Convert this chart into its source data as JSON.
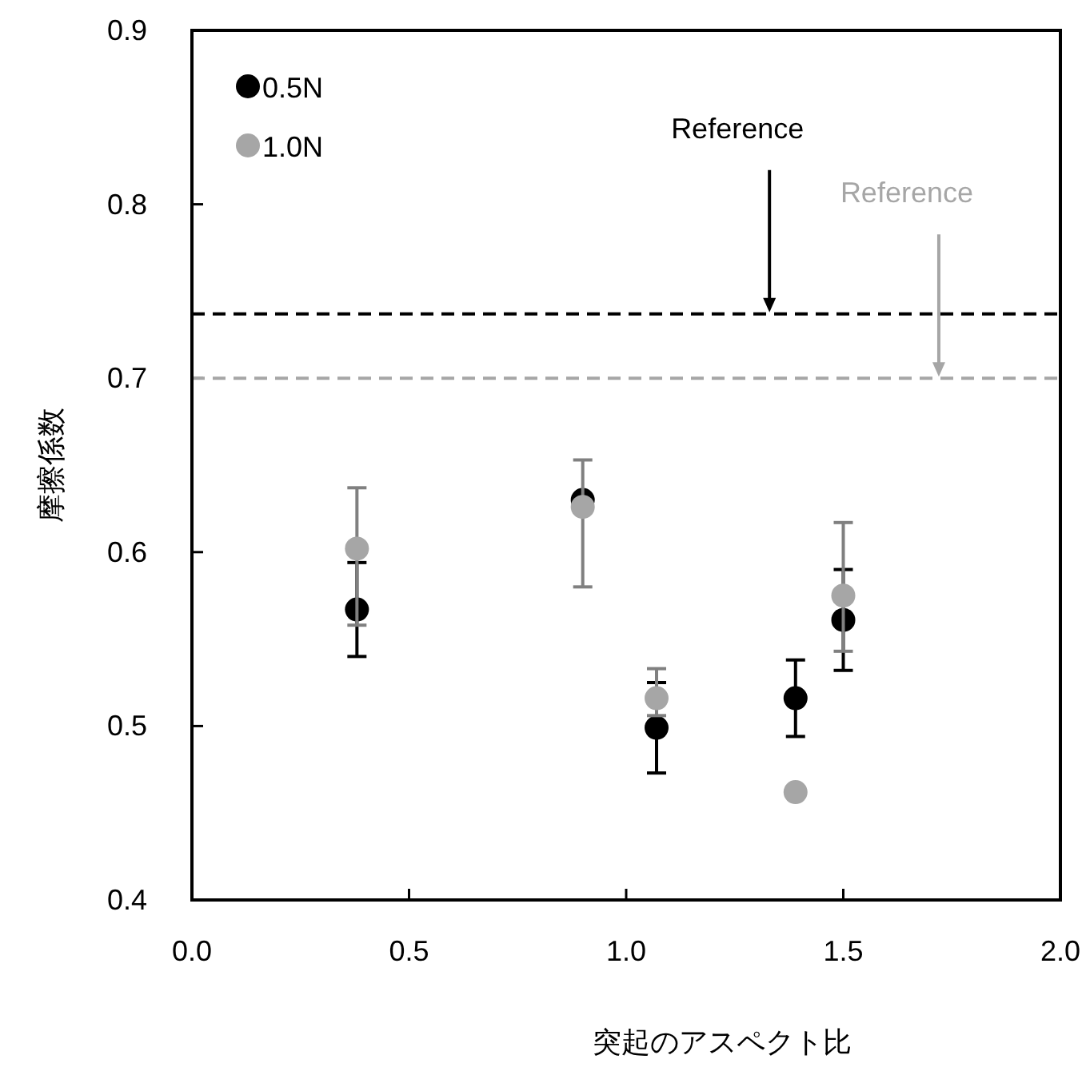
{
  "chart_data": {
    "type": "scatter",
    "xlabel": "突起のアスペクト比",
    "ylabel": "摩擦係数",
    "xlim": [
      0,
      2
    ],
    "xticks": [
      {
        "value": 0,
        "label": "0.0"
      },
      0.5,
      {
        "value": 1,
        "label": "1.0"
      },
      1.5,
      {
        "value": 2,
        "label": "2.0"
      }
    ],
    "ylim": [
      0.4,
      0.9
    ],
    "yticks": [
      0.4,
      0.5,
      0.6,
      0.7,
      0.8,
      0.9
    ],
    "grid": false,
    "legend": "top left",
    "marker": "circle",
    "series": [
      {
        "name": "0.5N",
        "color": "#000000",
        "x": [
          0.38,
          0.9,
          1.07,
          1.39,
          1.5
        ],
        "values": [
          0.567,
          0.63,
          0.499,
          0.516,
          0.561
        ],
        "errors": [
          0.027,
          null,
          0.026,
          0.022,
          0.029
        ]
      },
      {
        "name": "1.0N",
        "color": "#a6a6a6",
        "x": [
          0.38,
          0.9,
          1.07,
          1.39,
          1.5
        ],
        "values": [
          0.602,
          0.626,
          0.516,
          0.462,
          0.575
        ],
        "errors": [
          [
            0.558,
            0.637
          ],
          [
            0.58,
            0.653
          ],
          [
            0.506,
            0.533
          ],
          null,
          [
            0.543,
            0.617
          ]
        ]
      }
    ],
    "ref_lines": [
      {
        "axis": "y",
        "value": 0.737,
        "color": "#000000",
        "line_style": "dashed"
      },
      {
        "axis": "y",
        "value": 0.7,
        "color": "#a6a6a6",
        "line_style": "dashed"
      }
    ],
    "annotations": [
      {
        "text": "Reference",
        "x": 1.33,
        "y": 0.737
      },
      {
        "text": "Reference",
        "x": 1.72,
        "y": 0.7
      }
    ]
  }
}
